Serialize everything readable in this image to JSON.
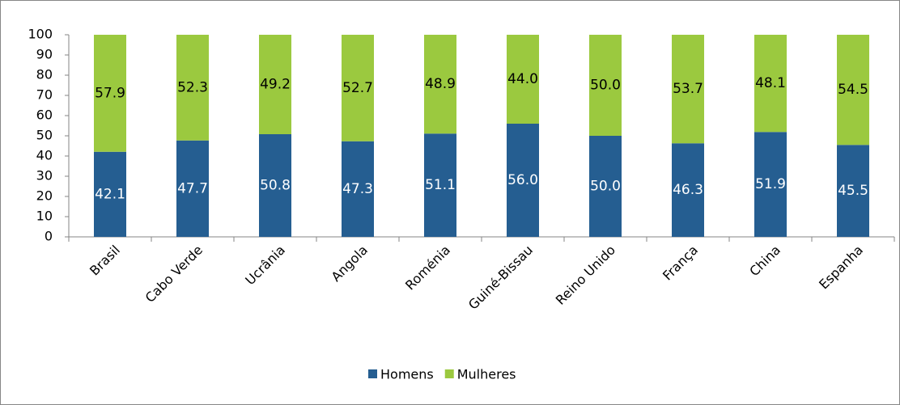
{
  "chart_data": {
    "type": "stacked_bar",
    "categories": [
      "Brasil",
      "Cabo Verde",
      "Ucrânia",
      "Angola",
      "Roménia",
      "Guiné-Bissau",
      "Reino Unido",
      "França",
      "China",
      "Espanha"
    ],
    "series": [
      {
        "name": "Homens",
        "color": "#255e91",
        "values": [
          42.1,
          47.7,
          50.8,
          47.3,
          51.1,
          56.0,
          50.0,
          46.3,
          51.9,
          45.5
        ],
        "value_labels": [
          "42.1",
          "47.7",
          "50.8",
          "47.3",
          "51.1",
          "56.0",
          "50.0",
          "46.3",
          "51.9",
          "45.5"
        ],
        "label_color": "#ffffff"
      },
      {
        "name": "Mulheres",
        "color": "#9bc93f",
        "values": [
          57.9,
          52.3,
          49.2,
          52.7,
          48.9,
          44.0,
          50.0,
          53.7,
          48.1,
          54.5
        ],
        "value_labels": [
          "57.9",
          "52.3",
          "49.2",
          "52.7",
          "48.9",
          "44.0",
          "50.0",
          "53.7",
          "48.1",
          "54.5"
        ],
        "label_color": "#000000"
      }
    ],
    "ylim": [
      0,
      100
    ],
    "yticks": [
      0,
      10,
      20,
      30,
      40,
      50,
      60,
      70,
      80,
      90,
      100
    ],
    "grid": false,
    "legend": "bottom"
  }
}
